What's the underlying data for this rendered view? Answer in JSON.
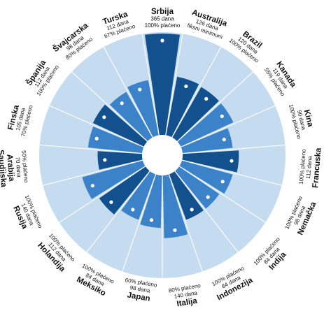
{
  "chart_data": {
    "type": "polar-bar",
    "unit_days": "dana",
    "rmax_days": 365,
    "colors": {
      "background": "#c5dcf0",
      "grid": "#ffffff",
      "dark": "#13508e",
      "light": "#3b82c9",
      "dot": "#ffffff"
    },
    "countries": [
      {
        "name": "Srbija",
        "days": 365,
        "days_label": "365 dana",
        "pay": "100% plaćeno",
        "shade": "dark"
      },
      {
        "name": "Australija",
        "days": 126,
        "days_label": "126 dana",
        "pay": "fiksni minimum",
        "shade": "dark"
      },
      {
        "name": "Brazil",
        "days": 120,
        "days_label": "120 dana",
        "pay": "100% plaćeno",
        "shade": "dark"
      },
      {
        "name": "Kanada",
        "days": 119,
        "days_label": "119 dana",
        "pay": "55% plaćeno",
        "shade": "light"
      },
      {
        "name": "Kina",
        "days": 90,
        "days_label": "90 dana",
        "pay": "100% plaćeno",
        "shade": "light"
      },
      {
        "name": "Francuska",
        "days": 112,
        "days_label": "112 dana",
        "pay": "100% plaćeno",
        "shade": "dark"
      },
      {
        "name": "Nemačka",
        "days": 98,
        "days_label": "98 dana",
        "pay": "100% plaćeno",
        "shade": "light"
      },
      {
        "name": "Indija",
        "days": 84,
        "days_label": "84 dana",
        "pay": "100% plaćeno",
        "shade": "light"
      },
      {
        "name": "Indonezija",
        "days": 84,
        "days_label": "84 dana",
        "pay": "100% plaćeno",
        "shade": "dark"
      },
      {
        "name": "Italija",
        "days": 140,
        "days_label": "140 dana",
        "pay": "80% plaćeno",
        "shade": "light"
      },
      {
        "name": "Japan",
        "days": 98,
        "days_label": "98 dana",
        "pay": "60% plaćeno",
        "shade": "light"
      },
      {
        "name": "Meksiko",
        "days": 84,
        "days_label": "84 dana",
        "pay": "100% plaćeno",
        "shade": "light"
      },
      {
        "name": "Holandija",
        "days": 112,
        "days_label": "112 dana",
        "pay": "100% plaćeno",
        "shade": "dark"
      },
      {
        "name": "Rusija",
        "days": 140,
        "days_label": "140 dana",
        "pay": "100% plaćeno",
        "shade": "light"
      },
      {
        "name": "Saudijska Arabija",
        "days": 70,
        "days_label": "70 dana",
        "pay": "50% plaćeno",
        "shade": "dark"
      },
      {
        "name": "Finska",
        "days": 105,
        "days_label": "105 dana",
        "pay": "70% plaćeno",
        "shade": "light"
      },
      {
        "name": "Španija",
        "days": 112,
        "days_label": "112 dana",
        "pay": "100% plaćeno",
        "shade": "dark"
      },
      {
        "name": "Švajcarska",
        "days": 98,
        "days_label": "98 dana",
        "pay": "80% plaćeno",
        "shade": "light"
      },
      {
        "name": "Turska",
        "days": 112,
        "days_label": "112 dana",
        "pay": "67% plaćeno",
        "shade": "light"
      }
    ]
  }
}
